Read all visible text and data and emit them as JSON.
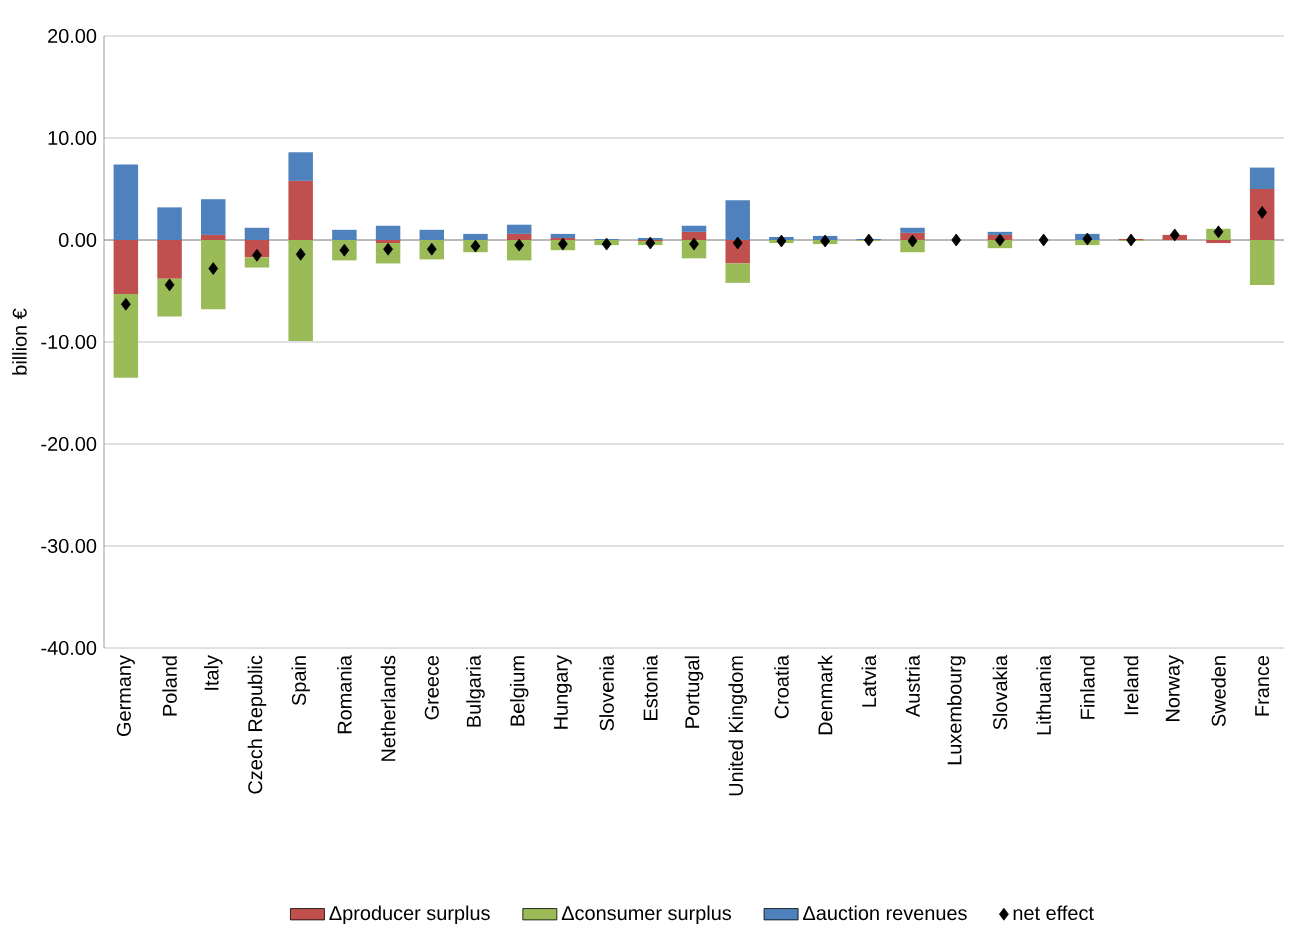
{
  "chart_data": {
    "type": "bar",
    "stacked": true,
    "ylabel": "billion €",
    "categories": [
      "Germany",
      "Poland",
      "Italy",
      "Czech Republic",
      "Spain",
      "Romania",
      "Netherlands",
      "Greece",
      "Bulgaria",
      "Belgium",
      "Hungary",
      "Slovenia",
      "Estonia",
      "Portugal",
      "United Kingdom",
      "Croatia",
      "Denmark",
      "Latvia",
      "Austria",
      "Luxembourg",
      "Slovakia",
      "Lithuania",
      "Finland",
      "Ireland",
      "Norway",
      "Sweden",
      "France"
    ],
    "series": [
      {
        "name": "Δproducer surplus",
        "color": "#c0504d",
        "values": [
          -5.3,
          -3.8,
          0.5,
          -1.7,
          5.8,
          0,
          -0.3,
          0,
          0,
          0.6,
          0.2,
          0,
          -0.1,
          0.8,
          -2.3,
          0,
          0,
          0,
          0.7,
          0,
          0.5,
          0,
          0,
          0.1,
          0.5,
          -0.3,
          5.0
        ]
      },
      {
        "name": "Δconsumer surplus",
        "color": "#9bbb59",
        "values": [
          -8.2,
          -3.7,
          -6.8,
          -1.0,
          -9.9,
          -2.0,
          -2.0,
          -1.9,
          -1.2,
          -2.0,
          -1.0,
          -0.5,
          -0.4,
          -1.8,
          -1.9,
          -0.3,
          -0.4,
          -0.1,
          -1.2,
          0,
          -0.8,
          0,
          -0.5,
          -0.1,
          0,
          1.1,
          -4.4
        ]
      },
      {
        "name": "Δauction revenues",
        "color": "#4f81bd",
        "values": [
          7.4,
          3.2,
          3.5,
          1.2,
          2.8,
          1.0,
          1.4,
          1.0,
          0.6,
          0.9,
          0.4,
          0.1,
          0.2,
          0.6,
          3.9,
          0.3,
          0.4,
          0.1,
          0.5,
          0,
          0.3,
          0,
          0.6,
          0,
          0,
          0,
          2.1
        ]
      },
      {
        "name": "net effect",
        "type": "scatter",
        "marker": "diamond",
        "color": "#000000",
        "values": [
          -6.3,
          -4.4,
          -2.8,
          -1.5,
          -1.4,
          -1.0,
          -0.9,
          -0.9,
          -0.6,
          -0.5,
          -0.4,
          -0.4,
          -0.3,
          -0.4,
          -0.3,
          -0.1,
          -0.1,
          0.0,
          -0.1,
          0.0,
          0.0,
          0.0,
          0.1,
          0.0,
          0.5,
          0.8,
          2.7
        ]
      }
    ],
    "ylim": [
      -40,
      20
    ],
    "yticks": [
      {
        "value": -40,
        "label": "-40.00"
      },
      {
        "value": -30,
        "label": "-30.00"
      },
      {
        "value": -20,
        "label": "-20.00"
      },
      {
        "value": -10,
        "label": "-10.00"
      },
      {
        "value": 0,
        "label": "0.00"
      },
      {
        "value": 10,
        "label": "10.00"
      },
      {
        "value": 20,
        "label": "20.00"
      }
    ],
    "grid": "y",
    "legend": "bottom"
  }
}
